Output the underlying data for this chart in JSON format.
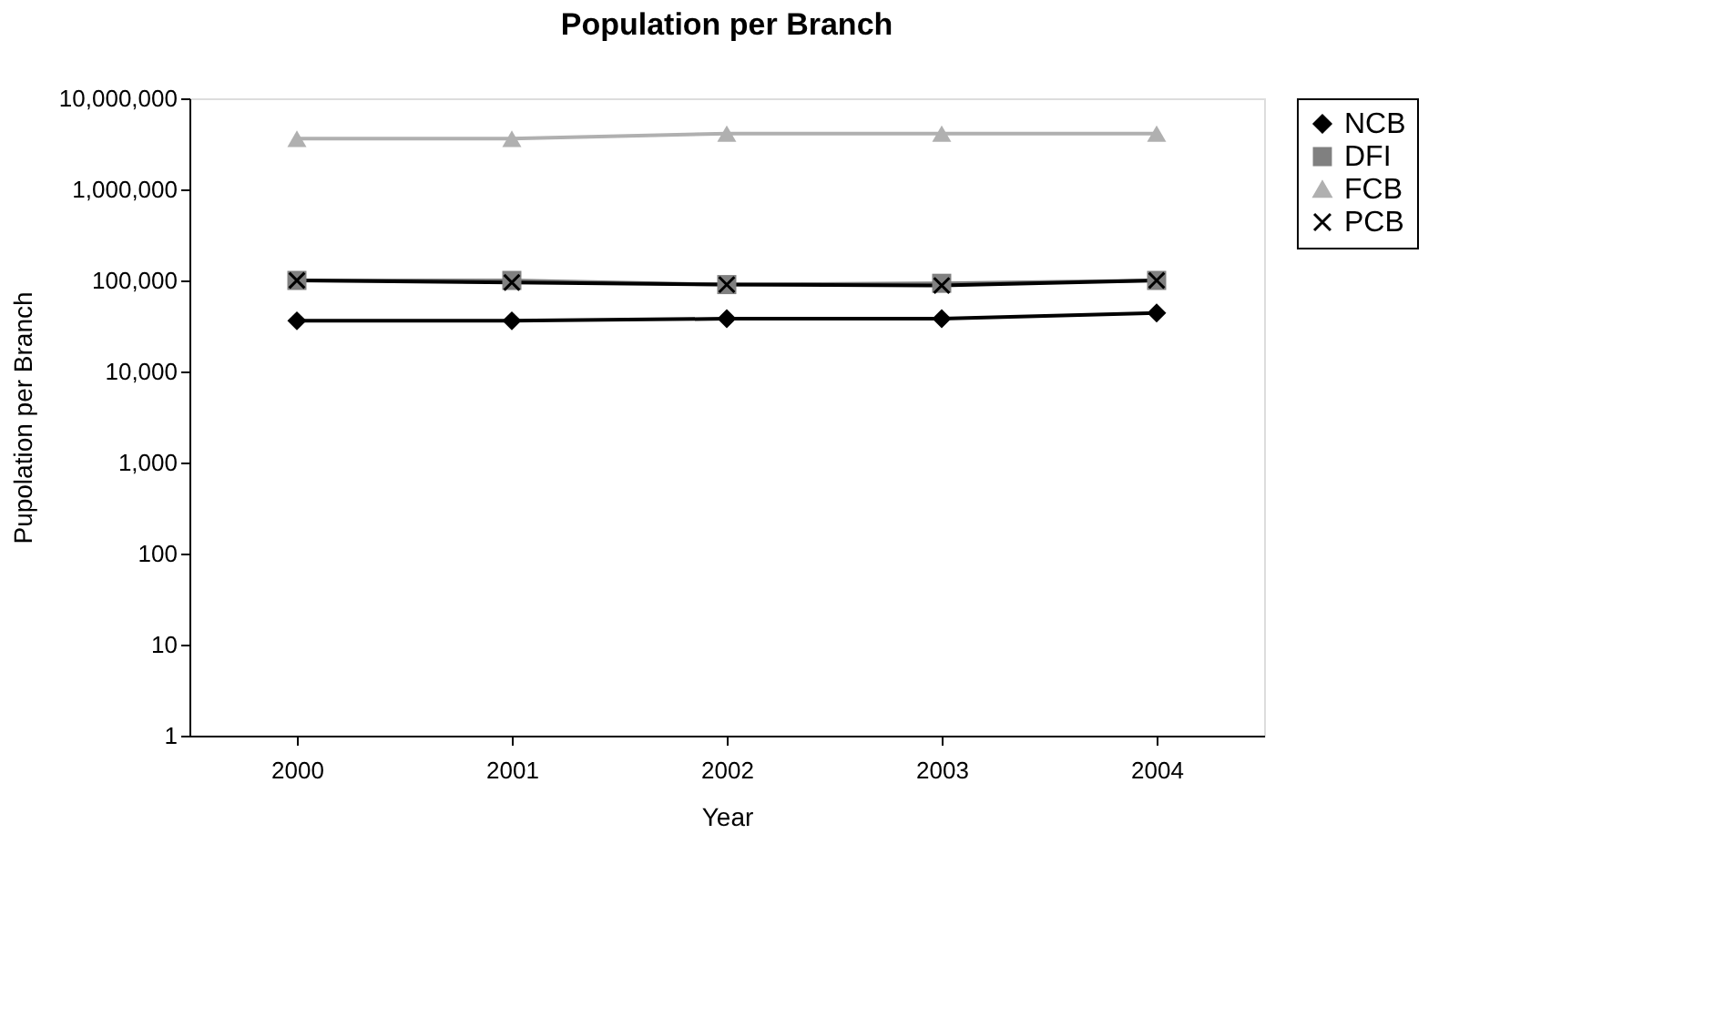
{
  "chart_data": {
    "type": "line",
    "title": "Population per Branch",
    "xlabel": "Year",
    "ylabel": "Pupolation per Branch",
    "categories": [
      "2000",
      "2001",
      "2002",
      "2003",
      "2004"
    ],
    "series": [
      {
        "name": "NCB",
        "color": "#000000",
        "marker": "diamond",
        "values": [
          36000,
          36000,
          38000,
          38000,
          44000
        ]
      },
      {
        "name": "DFI",
        "color": "#808080",
        "marker": "square",
        "values": [
          100000,
          100000,
          90000,
          93000,
          100000
        ]
      },
      {
        "name": "FCB",
        "color": "#b0b0b0",
        "marker": "triangle",
        "values": [
          3600000,
          3600000,
          4100000,
          4100000,
          4100000
        ]
      },
      {
        "name": "PCB",
        "color": "#000000",
        "marker": "cross",
        "values": [
          100000,
          95000,
          90000,
          88000,
          100000
        ]
      }
    ],
    "log": "y",
    "ylim": [
      1,
      10000000
    ],
    "yticks": [
      {
        "value": 1,
        "label": "1"
      },
      {
        "value": 10,
        "label": "10"
      },
      {
        "value": 100,
        "label": "100"
      },
      {
        "value": 1000,
        "label": "1,000"
      },
      {
        "value": 10000,
        "label": "10,000"
      },
      {
        "value": 100000,
        "label": "100,000"
      },
      {
        "value": 1000000,
        "label": "1,000,000"
      },
      {
        "value": 10000000,
        "label": "10,000,000"
      }
    ],
    "grid": false,
    "legend": "right",
    "line_style": "solid"
  }
}
